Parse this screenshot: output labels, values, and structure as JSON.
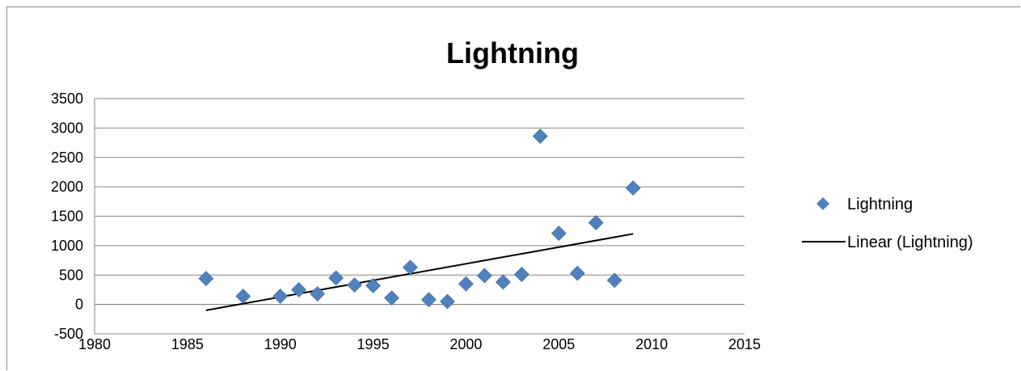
{
  "chart_data": {
    "type": "scatter",
    "title": "Lightning",
    "xlabel": "",
    "ylabel": "",
    "xlim": [
      1980,
      2015
    ],
    "ylim": [
      -500,
      3500
    ],
    "x_ticks": [
      "1980",
      "1985",
      "1990",
      "1995",
      "2000",
      "2005",
      "2010",
      "2015"
    ],
    "y_ticks": [
      "3500",
      "3000",
      "2500",
      "2000",
      "1500",
      "1000",
      "500",
      "0",
      "-500"
    ],
    "grid": "horizontal",
    "legend_position": "right",
    "series": [
      {
        "name": "Lightning",
        "color": "#4f81bd",
        "marker": "diamond",
        "points": [
          {
            "x": 1986,
            "y": 440
          },
          {
            "x": 1988,
            "y": 140
          },
          {
            "x": 1990,
            "y": 140
          },
          {
            "x": 1991,
            "y": 250
          },
          {
            "x": 1992,
            "y": 180
          },
          {
            "x": 1993,
            "y": 450
          },
          {
            "x": 1994,
            "y": 330
          },
          {
            "x": 1995,
            "y": 320
          },
          {
            "x": 1996,
            "y": 110
          },
          {
            "x": 1997,
            "y": 630
          },
          {
            "x": 1998,
            "y": 80
          },
          {
            "x": 1999,
            "y": 50
          },
          {
            "x": 2000,
            "y": 350
          },
          {
            "x": 2001,
            "y": 490
          },
          {
            "x": 2002,
            "y": 380
          },
          {
            "x": 2003,
            "y": 510
          },
          {
            "x": 2004,
            "y": 2860
          },
          {
            "x": 2005,
            "y": 1210
          },
          {
            "x": 2006,
            "y": 530
          },
          {
            "x": 2007,
            "y": 1390
          },
          {
            "x": 2008,
            "y": 410
          },
          {
            "x": 2009,
            "y": 1980
          }
        ]
      },
      {
        "name": "Linear (Lightning)",
        "color": "#000000",
        "type": "trendline",
        "points": [
          {
            "x": 1986,
            "y": -100
          },
          {
            "x": 2009,
            "y": 1200
          }
        ]
      }
    ]
  }
}
